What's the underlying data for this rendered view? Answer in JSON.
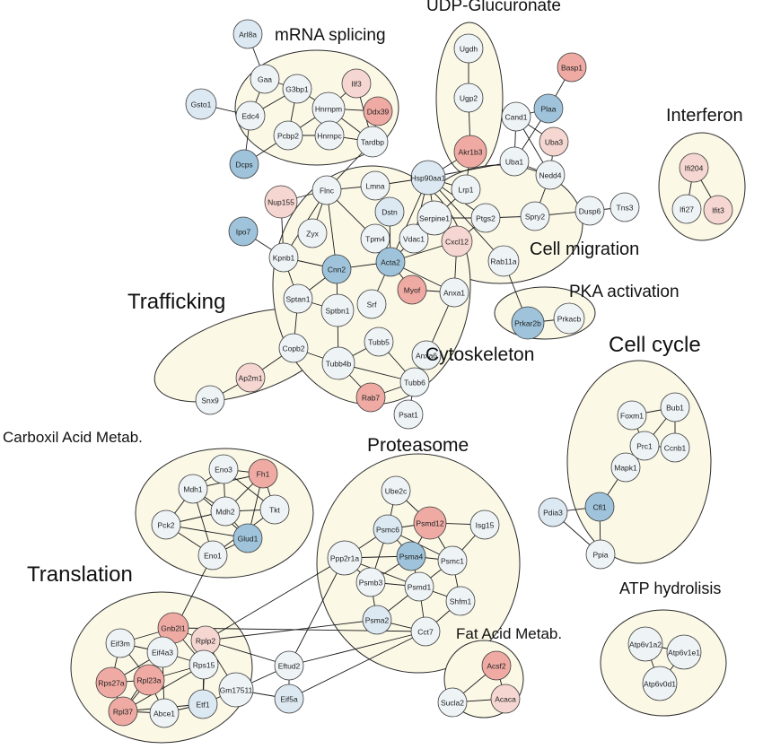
{
  "colors": {
    "blue-dark": "#9ec3da",
    "blue-light": "#dce9f2",
    "neutral": "#eef3f6",
    "pink-light": "#f5d6d1",
    "pink": "#efaaa3",
    "cluster_fill": "#fbf8e6",
    "edge": "#1a1a1a"
  },
  "groups": [
    {
      "id": "mrna",
      "label": "mRNA splicing"
    },
    {
      "id": "udp",
      "label": "UDP-Glucuronate"
    },
    {
      "id": "interferon",
      "label": "Interferon"
    },
    {
      "id": "cellmig",
      "label": "Cell migration"
    },
    {
      "id": "pka",
      "label": "PKA activation"
    },
    {
      "id": "trafficking",
      "label": "Trafficking"
    },
    {
      "id": "cytoskeleton",
      "label": "Cytoskeleton"
    },
    {
      "id": "cellcycle",
      "label": "Cell cycle"
    },
    {
      "id": "carboxil",
      "label": "Carboxil Acid Metab."
    },
    {
      "id": "proteasome",
      "label": "Proteasome"
    },
    {
      "id": "translation",
      "label": "Translation"
    },
    {
      "id": "atp",
      "label": "ATP hydrolisis"
    },
    {
      "id": "fatacid",
      "label": "Fat Acid Metab."
    }
  ],
  "nodes": [
    {
      "id": "Arl8a",
      "label": "Arl8a",
      "color": "blue-light"
    },
    {
      "id": "Gaa",
      "label": "Gaa",
      "color": "neutral"
    },
    {
      "id": "Gsto1",
      "label": "Gsto1",
      "color": "blue-light"
    },
    {
      "id": "G3bp1",
      "label": "G3bp1",
      "color": "neutral"
    },
    {
      "id": "Ilf3",
      "label": "Ilf3",
      "color": "pink-light"
    },
    {
      "id": "Edc4",
      "label": "Edc4",
      "color": "neutral"
    },
    {
      "id": "Hnrnpm",
      "label": "Hnrnpm",
      "color": "neutral"
    },
    {
      "id": "Ddx39",
      "label": "Ddx39",
      "color": "pink"
    },
    {
      "id": "Pcbp2",
      "label": "Pcbp2",
      "color": "neutral"
    },
    {
      "id": "Hnrnpc",
      "label": "Hnrnpc",
      "color": "neutral"
    },
    {
      "id": "Tardbp",
      "label": "Tardbp",
      "color": "neutral"
    },
    {
      "id": "Dcps",
      "label": "Dcps",
      "color": "blue-dark"
    },
    {
      "id": "Flnc",
      "label": "Flnc",
      "color": "neutral"
    },
    {
      "id": "Lmna",
      "label": "Lmna",
      "color": "neutral"
    },
    {
      "id": "Nup155",
      "label": "Nup155",
      "color": "pink-light"
    },
    {
      "id": "Ipo7",
      "label": "Ipo7",
      "color": "blue-dark"
    },
    {
      "id": "Zyx",
      "label": "Zyx",
      "color": "neutral"
    },
    {
      "id": "Kpnb1",
      "label": "Kpnb1",
      "color": "neutral"
    },
    {
      "id": "Dstn",
      "label": "Dstn",
      "color": "blue-light"
    },
    {
      "id": "Tpm4",
      "label": "Tpm4",
      "color": "neutral"
    },
    {
      "id": "Cnn2",
      "label": "Cnn2",
      "color": "blue-dark"
    },
    {
      "id": "Acta2",
      "label": "Acta2",
      "color": "blue-dark"
    },
    {
      "id": "Vdac1",
      "label": "Vdac1",
      "color": "neutral"
    },
    {
      "id": "Sptan1",
      "label": "Sptan1",
      "color": "neutral"
    },
    {
      "id": "Sptbn1",
      "label": "Sptbn1",
      "color": "neutral"
    },
    {
      "id": "Srf",
      "label": "Srf",
      "color": "neutral"
    },
    {
      "id": "Myof",
      "label": "Myof",
      "color": "pink"
    },
    {
      "id": "Anxa1",
      "label": "Anxa1",
      "color": "neutral"
    },
    {
      "id": "Anxa6",
      "label": "Anxa6",
      "color": "neutral"
    },
    {
      "id": "Tubb5",
      "label": "Tubb5",
      "color": "neutral"
    },
    {
      "id": "Tubb4b",
      "label": "Tubb4b",
      "color": "neutral"
    },
    {
      "id": "Tubb6",
      "label": "Tubb6",
      "color": "neutral"
    },
    {
      "id": "Rab7",
      "label": "Rab7",
      "color": "pink"
    },
    {
      "id": "Psat1",
      "label": "Psat1",
      "color": "neutral"
    },
    {
      "id": "Ugdh",
      "label": "Ugdh",
      "color": "neutral"
    },
    {
      "id": "Ugp2",
      "label": "Ugp2",
      "color": "neutral"
    },
    {
      "id": "Akr1b3",
      "label": "Akr1b3",
      "color": "pink"
    },
    {
      "id": "Basp1",
      "label": "Basp1",
      "color": "pink"
    },
    {
      "id": "Plaa",
      "label": "Plaa",
      "color": "blue-dark"
    },
    {
      "id": "Cand1",
      "label": "Cand1",
      "color": "neutral"
    },
    {
      "id": "Uba3",
      "label": "Uba3",
      "color": "pink-light"
    },
    {
      "id": "Uba1",
      "label": "Uba1",
      "color": "neutral"
    },
    {
      "id": "Nedd4",
      "label": "Nedd4",
      "color": "neutral"
    },
    {
      "id": "Hsp90aa1",
      "label": "Hsp90aa1",
      "color": "blue-light"
    },
    {
      "id": "Lrp1",
      "label": "Lrp1",
      "color": "neutral"
    },
    {
      "id": "Serpine1",
      "label": "Serpine1",
      "color": "neutral"
    },
    {
      "id": "Ptgs2",
      "label": "Ptgs2",
      "color": "neutral"
    },
    {
      "id": "Cxcl12",
      "label": "Cxcl12",
      "color": "pink-light"
    },
    {
      "id": "Spry2",
      "label": "Spry2",
      "color": "neutral"
    },
    {
      "id": "Dusp6",
      "label": "Dusp6",
      "color": "neutral"
    },
    {
      "id": "Tns3",
      "label": "Tns3",
      "color": "neutral"
    },
    {
      "id": "Rab11a",
      "label": "Rab11a",
      "color": "neutral"
    },
    {
      "id": "Ifi204",
      "label": "Ifi204",
      "color": "pink-light"
    },
    {
      "id": "Ifi27",
      "label": "Ifi27",
      "color": "neutral"
    },
    {
      "id": "Ifit3",
      "label": "Ifit3",
      "color": "pink-light"
    },
    {
      "id": "Prkar2b",
      "label": "Prkar2b",
      "color": "blue-dark"
    },
    {
      "id": "Prkacb",
      "label": "Prkacb",
      "color": "neutral"
    },
    {
      "id": "Copb2",
      "label": "Copb2",
      "color": "neutral"
    },
    {
      "id": "Ap2m1",
      "label": "Ap2m1",
      "color": "pink-light"
    },
    {
      "id": "Snx9",
      "label": "Snx9",
      "color": "neutral"
    },
    {
      "id": "Foxm1",
      "label": "Foxm1",
      "color": "neutral"
    },
    {
      "id": "Bub1",
      "label": "Bub1",
      "color": "neutral"
    },
    {
      "id": "Prc1",
      "label": "Prc1",
      "color": "neutral"
    },
    {
      "id": "Ccnb1",
      "label": "Ccnb1",
      "color": "neutral"
    },
    {
      "id": "Mapk1",
      "label": "Mapk1",
      "color": "neutral"
    },
    {
      "id": "Pdia3",
      "label": "Pdia3",
      "color": "blue-light"
    },
    {
      "id": "Cfl1",
      "label": "Cfl1",
      "color": "blue-dark"
    },
    {
      "id": "Ppia",
      "label": "Ppia",
      "color": "neutral"
    },
    {
      "id": "Eno3",
      "label": "Eno3",
      "color": "neutral"
    },
    {
      "id": "Fh1",
      "label": "Fh1",
      "color": "pink"
    },
    {
      "id": "Mdh1",
      "label": "Mdh1",
      "color": "neutral"
    },
    {
      "id": "Mdh2",
      "label": "Mdh2",
      "color": "neutral"
    },
    {
      "id": "Tkt",
      "label": "Tkt",
      "color": "neutral"
    },
    {
      "id": "Pck2",
      "label": "Pck2",
      "color": "neutral"
    },
    {
      "id": "Glud1",
      "label": "Glud1",
      "color": "blue-dark"
    },
    {
      "id": "Eno1",
      "label": "Eno1",
      "color": "neutral"
    },
    {
      "id": "Ube2c",
      "label": "Ube2c",
      "color": "neutral"
    },
    {
      "id": "Psmd12",
      "label": "Psmd12",
      "color": "pink"
    },
    {
      "id": "Psmc6",
      "label": "Psmc6",
      "color": "blue-light"
    },
    {
      "id": "Isg15",
      "label": "Isg15",
      "color": "neutral"
    },
    {
      "id": "Psma4",
      "label": "Psma4",
      "color": "blue-dark"
    },
    {
      "id": "Psmc1",
      "label": "Psmc1",
      "color": "neutral"
    },
    {
      "id": "Ppp2r1a",
      "label": "Ppp2r1a",
      "color": "neutral"
    },
    {
      "id": "Psmb3",
      "label": "Psmb3",
      "color": "neutral"
    },
    {
      "id": "Psmd1",
      "label": "Psmd1",
      "color": "neutral"
    },
    {
      "id": "Shfm1",
      "label": "Shfm1",
      "color": "neutral"
    },
    {
      "id": "Psma2",
      "label": "Psma2",
      "color": "blue-light"
    },
    {
      "id": "Cct7",
      "label": "Cct7",
      "color": "neutral"
    },
    {
      "id": "Eif3m",
      "label": "Eif3m",
      "color": "neutral"
    },
    {
      "id": "Gnb2l1",
      "label": "Gnb2l1",
      "color": "pink"
    },
    {
      "id": "Eif4a3",
      "label": "Eif4a3",
      "color": "neutral"
    },
    {
      "id": "Rplp2",
      "label": "Rplp2",
      "color": "pink-light"
    },
    {
      "id": "Rps15",
      "label": "Rps15",
      "color": "neutral"
    },
    {
      "id": "Rps27a",
      "label": "Rps27a",
      "color": "pink"
    },
    {
      "id": "Rpl23a",
      "label": "Rpl23a",
      "color": "pink"
    },
    {
      "id": "Rpl37",
      "label": "Rpl37",
      "color": "pink"
    },
    {
      "id": "Abce1",
      "label": "Abce1",
      "color": "neutral"
    },
    {
      "id": "Etf1",
      "label": "Etf1",
      "color": "blue-light"
    },
    {
      "id": "Gm17511",
      "label": "Gm17511",
      "color": "neutral"
    },
    {
      "id": "Eftud2",
      "label": "Eftud2",
      "color": "neutral"
    },
    {
      "id": "Eif5a",
      "label": "Eif5a",
      "color": "blue-light"
    },
    {
      "id": "Acsf2",
      "label": "Acsf2",
      "color": "pink"
    },
    {
      "id": "Acaca",
      "label": "Acaca",
      "color": "pink-light"
    },
    {
      "id": "Sucla2",
      "label": "Sucla2",
      "color": "neutral"
    },
    {
      "id": "Atp6v1a2",
      "label": "Atp6v1a2",
      "color": "neutral"
    },
    {
      "id": "Atp6v1e1",
      "label": "Atp6v1e1",
      "color": "neutral"
    },
    {
      "id": "Atp6v0d1",
      "label": "Atp6v0d1",
      "color": "neutral"
    }
  ],
  "edges": [
    [
      "Arl8a",
      "Gaa"
    ],
    [
      "Gaa",
      "Edc4"
    ],
    [
      "Gaa",
      "G3bp1"
    ],
    [
      "Gsto1",
      "Edc4"
    ],
    [
      "Edc4",
      "Dcps"
    ],
    [
      "Edc4",
      "G3bp1"
    ],
    [
      "G3bp1",
      "Pcbp2"
    ],
    [
      "G3bp1",
      "Hnrnpm"
    ],
    [
      "Ilf3",
      "Hnrnpm"
    ],
    [
      "Ilf3",
      "Tardbp"
    ],
    [
      "Hnrnpm",
      "Ddx39"
    ],
    [
      "Hnrnpm",
      "Hnrnpc"
    ],
    [
      "Hnrnpm",
      "Tardbp"
    ],
    [
      "Hnrnpm",
      "Pcbp2"
    ],
    [
      "Ddx39",
      "Tardbp"
    ],
    [
      "Pcbp2",
      "Hnrnpc"
    ],
    [
      "Hnrnpc",
      "Tardbp"
    ],
    [
      "Dcps",
      "Pcbp2"
    ],
    [
      "Tardbp",
      "Flnc"
    ],
    [
      "Flnc",
      "Lmna"
    ],
    [
      "Flnc",
      "Nup155"
    ],
    [
      "Flnc",
      "Zyx"
    ],
    [
      "Flnc",
      "Tpm4"
    ],
    [
      "Flnc",
      "Cnn2"
    ],
    [
      "Flnc",
      "Kpnb1"
    ],
    [
      "Lmna",
      "Hsp90aa1"
    ],
    [
      "Nup155",
      "Kpnb1"
    ],
    [
      "Ipo7",
      "Kpnb1"
    ],
    [
      "Kpnb1",
      "Sptan1"
    ],
    [
      "Kpnb1",
      "Cnn2"
    ],
    [
      "Dstn",
      "Acta2"
    ],
    [
      "Tpm4",
      "Acta2"
    ],
    [
      "Cnn2",
      "Acta2"
    ],
    [
      "Cnn2",
      "Sptan1"
    ],
    [
      "Cnn2",
      "Sptbn1"
    ],
    [
      "Acta2",
      "Vdac1"
    ],
    [
      "Acta2",
      "Srf"
    ],
    [
      "Acta2",
      "Myof"
    ],
    [
      "Acta2",
      "Anxa1"
    ],
    [
      "Acta2",
      "Cxcl12"
    ],
    [
      "Acta2",
      "Hsp90aa1"
    ],
    [
      "Sptan1",
      "Sptbn1"
    ],
    [
      "Sptan1",
      "Copb2"
    ],
    [
      "Sptbn1",
      "Tubb4b"
    ],
    [
      "Myof",
      "Anxa1"
    ],
    [
      "Anxa1",
      "Anxa6"
    ],
    [
      "Anxa6",
      "Tubb6"
    ],
    [
      "Tubb5",
      "Tubb4b"
    ],
    [
      "Tubb5",
      "Tubb6"
    ],
    [
      "Tubb4b",
      "Tubb6"
    ],
    [
      "Tubb4b",
      "Rab7"
    ],
    [
      "Tubb6",
      "Rab7"
    ],
    [
      "Tubb6",
      "Psat1"
    ],
    [
      "Copb2",
      "Ap2m1"
    ],
    [
      "Copb2",
      "Tubb4b"
    ],
    [
      "Ap2m1",
      "Snx9"
    ],
    [
      "Ugdh",
      "Ugp2"
    ],
    [
      "Ugp2",
      "Akr1b3"
    ],
    [
      "Akr1b3",
      "Lrp1"
    ],
    [
      "Akr1b3",
      "Hsp90aa1"
    ],
    [
      "Basp1",
      "Plaa"
    ],
    [
      "Plaa",
      "Cand1"
    ],
    [
      "Plaa",
      "Uba1"
    ],
    [
      "Cand1",
      "Uba1"
    ],
    [
      "Cand1",
      "Uba3"
    ],
    [
      "Cand1",
      "Nedd4"
    ],
    [
      "Uba3",
      "Nedd4"
    ],
    [
      "Uba1",
      "Nedd4"
    ],
    [
      "Uba1",
      "Hsp90aa1"
    ],
    [
      "Nedd4",
      "Spry2"
    ],
    [
      "Hsp90aa1",
      "Lrp1"
    ],
    [
      "Hsp90aa1",
      "Serpine1"
    ],
    [
      "Hsp90aa1",
      "Ptgs2"
    ],
    [
      "Hsp90aa1",
      "Vdac1"
    ],
    [
      "Hsp90aa1",
      "Rab11a"
    ],
    [
      "Serpine1",
      "Lrp1"
    ],
    [
      "Serpine1",
      "Ptgs2"
    ],
    [
      "Serpine1",
      "Cxcl12"
    ],
    [
      "Ptgs2",
      "Spry2"
    ],
    [
      "Ptgs2",
      "Cxcl12"
    ],
    [
      "Cxcl12",
      "Anxa1"
    ],
    [
      "Spry2",
      "Dusp6"
    ],
    [
      "Dusp6",
      "Tns3"
    ],
    [
      "Rab11a",
      "Prkar2b"
    ],
    [
      "Prkar2b",
      "Prkacb"
    ],
    [
      "Ifi204",
      "Ifi27"
    ],
    [
      "Ifi204",
      "Ifit3"
    ],
    [
      "Foxm1",
      "Bub1"
    ],
    [
      "Foxm1",
      "Prc1"
    ],
    [
      "Bub1",
      "Prc1"
    ],
    [
      "Bub1",
      "Ccnb1"
    ],
    [
      "Prc1",
      "Ccnb1"
    ],
    [
      "Prc1",
      "Mapk1"
    ],
    [
      "Mapk1",
      "Cfl1"
    ],
    [
      "Pdia3",
      "Cfl1"
    ],
    [
      "Pdia3",
      "Ppia"
    ],
    [
      "Cfl1",
      "Ppia"
    ],
    [
      "Eno3",
      "Fh1"
    ],
    [
      "Eno3",
      "Mdh1"
    ],
    [
      "Eno3",
      "Mdh2"
    ],
    [
      "Eno3",
      "Tkt"
    ],
    [
      "Fh1",
      "Mdh1"
    ],
    [
      "Fh1",
      "Mdh2"
    ],
    [
      "Fh1",
      "Tkt"
    ],
    [
      "Fh1",
      "Glud1"
    ],
    [
      "Mdh1",
      "Mdh2"
    ],
    [
      "Mdh1",
      "Pck2"
    ],
    [
      "Mdh1",
      "Glud1"
    ],
    [
      "Mdh2",
      "Pck2"
    ],
    [
      "Mdh2",
      "Glud1"
    ],
    [
      "Mdh2",
      "Tkt"
    ],
    [
      "Pck2",
      "Eno1"
    ],
    [
      "Pck2",
      "Glud1"
    ],
    [
      "Glud1",
      "Eno1"
    ],
    [
      "Tkt",
      "Eno1"
    ],
    [
      "Mdh1",
      "Eno1"
    ],
    [
      "Eno1",
      "Rpl23a"
    ],
    [
      "Ube2c",
      "Psmd12"
    ],
    [
      "Ube2c",
      "Psmc6"
    ],
    [
      "Psmd12",
      "Psmc6"
    ],
    [
      "Psmd12",
      "Psma4"
    ],
    [
      "Psmd12",
      "Psmc1"
    ],
    [
      "Psmd12",
      "Isg15"
    ],
    [
      "Psmc6",
      "Psma4"
    ],
    [
      "Psmc6",
      "Psmb3"
    ],
    [
      "Psmc6",
      "Psmc1"
    ],
    [
      "Psmc6",
      "Ppp2r1a"
    ],
    [
      "Psma4",
      "Psmc1"
    ],
    [
      "Psma4",
      "Psmb3"
    ],
    [
      "Psma4",
      "Psmd1"
    ],
    [
      "Psmb3",
      "Psmd1"
    ],
    [
      "Psmb3",
      "Psma2"
    ],
    [
      "Psmd1",
      "Psmc1"
    ],
    [
      "Psmd1",
      "Shfm1"
    ],
    [
      "Psmc1",
      "Shfm1"
    ],
    [
      "Psma2",
      "Cct7"
    ],
    [
      "Psmd1",
      "Cct7"
    ],
    [
      "Ppp2r1a",
      "Psmb3"
    ],
    [
      "Ppp2r1a",
      "Psma4"
    ],
    [
      "Ppp2r1a",
      "Psmd1"
    ],
    [
      "Isg15",
      "Psmc1"
    ],
    [
      "Shfm1",
      "Cct7"
    ],
    [
      "Psma2",
      "Psmd1"
    ],
    [
      "Ppp2r1a",
      "Rplp2"
    ],
    [
      "Ppp2r1a",
      "Eftud2"
    ],
    [
      "Cct7",
      "Eftud2"
    ],
    [
      "Cct7",
      "Gnb2l1"
    ],
    [
      "Cct7",
      "Eif5a"
    ],
    [
      "Psma2",
      "Rplp2"
    ],
    [
      "Eif3m",
      "Gnb2l1"
    ],
    [
      "Eif3m",
      "Eif4a3"
    ],
    [
      "Eif3m",
      "Rps27a"
    ],
    [
      "Eif3m",
      "Rpl23a"
    ],
    [
      "Gnb2l1",
      "Eif4a3"
    ],
    [
      "Gnb2l1",
      "Rplp2"
    ],
    [
      "Gnb2l1",
      "Rps15"
    ],
    [
      "Gnb2l1",
      "Rpl23a"
    ],
    [
      "Eif4a3",
      "Rps27a"
    ],
    [
      "Eif4a3",
      "Rpl23a"
    ],
    [
      "Eif4a3",
      "Rpl37"
    ],
    [
      "Eif4a3",
      "Rps15"
    ],
    [
      "Eif4a3",
      "Abce1"
    ],
    [
      "Rplp2",
      "Rps15"
    ],
    [
      "Rplp2",
      "Etf1"
    ],
    [
      "Rplp2",
      "Eftud2"
    ],
    [
      "Rplp2",
      "Gm17511"
    ],
    [
      "Rps15",
      "Rpl23a"
    ],
    [
      "Rps15",
      "Etf1"
    ],
    [
      "Rps15",
      "Rpl37"
    ],
    [
      "Rps27a",
      "Rpl23a"
    ],
    [
      "Rps27a",
      "Rpl37"
    ],
    [
      "Rpl23a",
      "Rpl37"
    ],
    [
      "Rpl23a",
      "Abce1"
    ],
    [
      "Rpl37",
      "Abce1"
    ],
    [
      "Abce1",
      "Etf1"
    ],
    [
      "Rpl37",
      "Etf1"
    ],
    [
      "Gm17511",
      "Etf1"
    ],
    [
      "Gm17511",
      "Eif5a"
    ],
    [
      "Eftud2",
      "Eif5a"
    ],
    [
      "Eftud2",
      "Gm17511"
    ],
    [
      "Sucla2",
      "Acsf2"
    ],
    [
      "Sucla2",
      "Acaca"
    ],
    [
      "Acsf2",
      "Acaca"
    ],
    [
      "Atp6v1a2",
      "Atp6v1e1"
    ],
    [
      "Atp6v1a2",
      "Atp6v0d1"
    ],
    [
      "Atp6v1e1",
      "Atp6v0d1"
    ]
  ]
}
